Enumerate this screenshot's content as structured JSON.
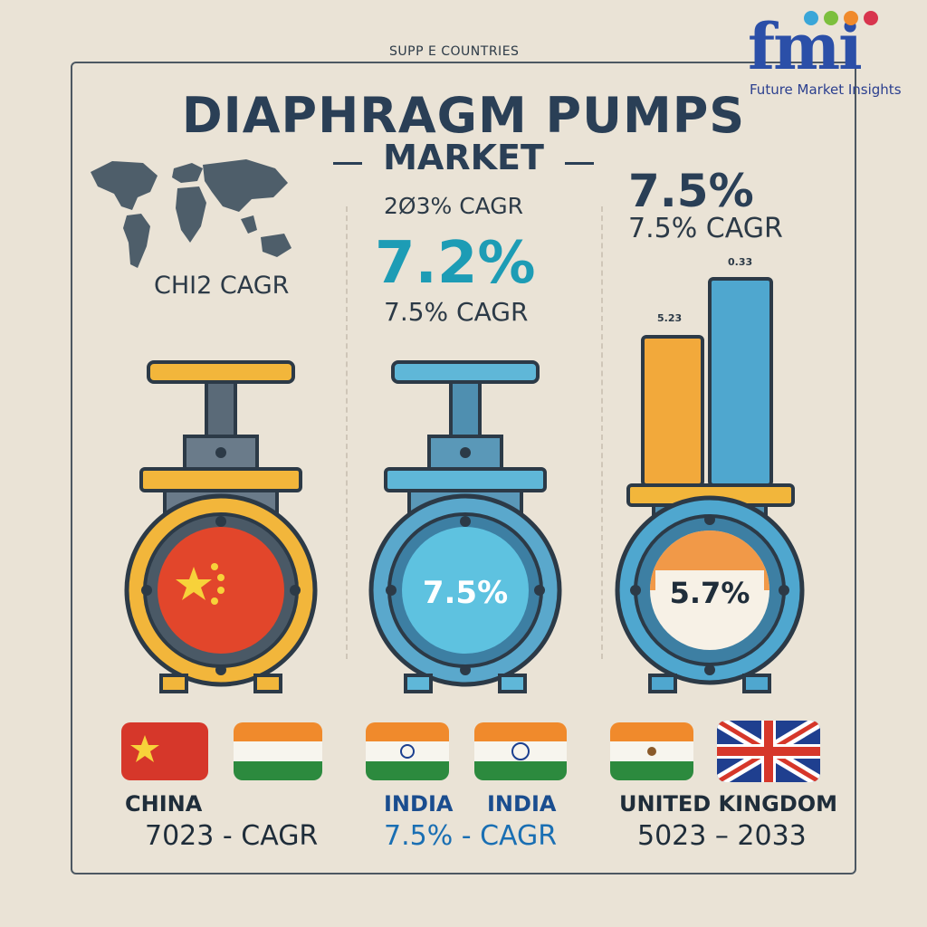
{
  "header": {
    "top_label": "SUPP E COUNTRIES",
    "title": "DIAPHRAGM PUMPS",
    "subtitle": "MARKET"
  },
  "logo": {
    "mark": "fmi",
    "name": "Future Market Insights"
  },
  "left_panel": {
    "cagr_text": "CHI2 CAGR"
  },
  "middle_panel": {
    "top_text": "2Ø3% CAGR",
    "big_value": "7.2%",
    "cagr_text": "7.5% CAGR",
    "valve_value": "7.5%"
  },
  "right_panel": {
    "big_value": "7.5%",
    "cagr_text": "7.5% CAGR",
    "bar_label_left": "5.23",
    "bar_label_right": "0.33",
    "valve_value": "5.7%"
  },
  "bottom": {
    "left_country": "CHINA",
    "left_period": "7023 - CAGR",
    "mid_country_1": "INDIA",
    "mid_country_2": "INDIA",
    "mid_period": "7.5% - CAGR",
    "right_country": "UNITED KINGDOM",
    "right_period": "5023 – 2033"
  },
  "colors": {
    "background": "#eae3d6",
    "navy": "#2a3f56",
    "teal": "#1d9cb5",
    "orange_bar": "#f2a93b",
    "blue_bar": "#4fa7cf",
    "china_red": "#d6372a"
  },
  "icons": [
    "world-map-icon",
    "china-valve-icon",
    "india-valve-icon",
    "uk-valve-icon",
    "china-flag-icon",
    "india-flag-icon",
    "uk-flag-icon"
  ]
}
